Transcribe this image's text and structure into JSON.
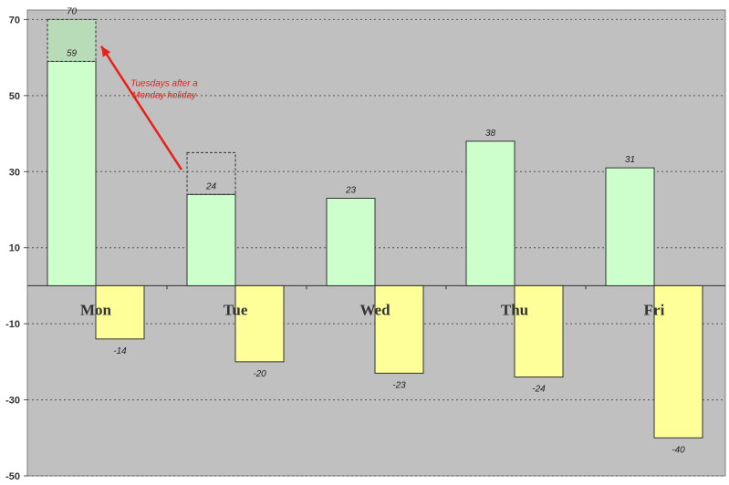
{
  "chart_data": {
    "type": "bar",
    "title": "",
    "xlabel": "",
    "ylabel": "",
    "categories": [
      "Mon",
      "Tue",
      "Wed",
      "Thu",
      "Fri"
    ],
    "series": [
      {
        "values": [
          59,
          24,
          23,
          38,
          31
        ],
        "color": "#ccffcc"
      },
      {
        "values": [
          -14,
          -20,
          -23,
          -24,
          -40
        ],
        "color": "#ffff99"
      }
    ],
    "highlight_box": {
      "category": "Mon",
      "from": 59,
      "to": 70,
      "label": "70",
      "inner_label": "59",
      "fill": "#b7dcb7"
    },
    "dashed_outline": {
      "category": "Tue",
      "from": 24,
      "to": 35
    },
    "annotation": {
      "lines": [
        "Tuesdays after a",
        "Monday holiday"
      ],
      "color": "#e8201a"
    },
    "yticks": [
      70,
      50,
      30,
      10,
      -10,
      -30,
      -50
    ],
    "ylim": [
      -50,
      70
    ],
    "grid": true,
    "plot_background": "#c0c0c0"
  }
}
